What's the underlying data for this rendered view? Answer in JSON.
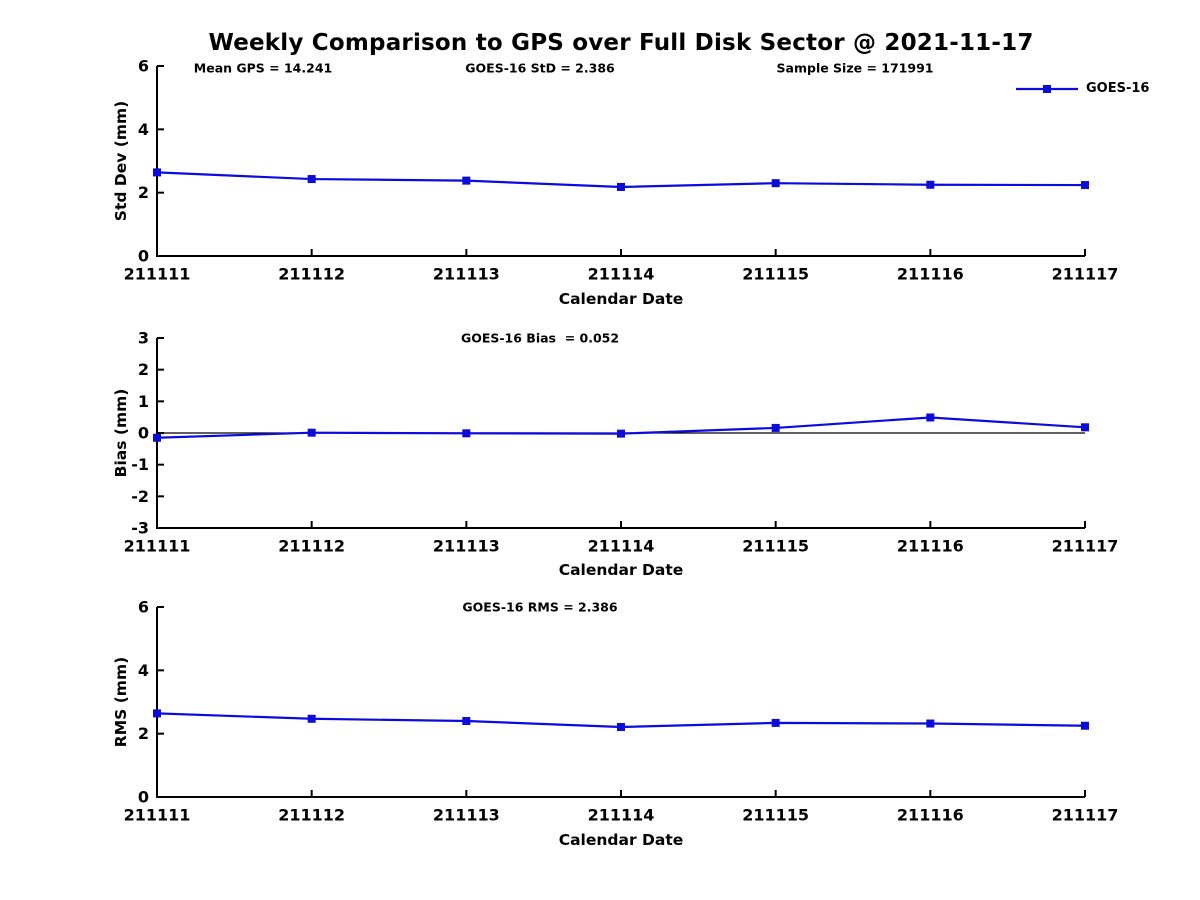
{
  "page_title": "Weekly Comparison to GPS over Full Disk Sector @ 2021-11-17",
  "legend": {
    "label": "GOES-16"
  },
  "colors": {
    "line": "#0b0bdf",
    "axis": "#000000",
    "text": "#000000",
    "background": "#ffffff"
  },
  "chart_data": [
    {
      "type": "line",
      "ylabel": "Std Dev (mm)",
      "xlabel": "Calendar Date",
      "categories": [
        "211111",
        "211112",
        "211113",
        "211114",
        "211115",
        "211116",
        "211117"
      ],
      "yticks": [
        0,
        2,
        4,
        6
      ],
      "ylim": [
        0,
        6
      ],
      "grid": false,
      "legend_position": "top-right-outside",
      "marker": "square",
      "series": [
        {
          "name": "GOES-16",
          "values": [
            2.64,
            2.43,
            2.38,
            2.18,
            2.3,
            2.25,
            2.24
          ]
        }
      ],
      "annotations": [
        "Mean GPS = 14.241",
        "GOES-16 StD = 2.386",
        "Sample Size = 171991"
      ]
    },
    {
      "type": "line",
      "ylabel": "Bias (mm)",
      "xlabel": "Calendar Date",
      "categories": [
        "211111",
        "211112",
        "211113",
        "211114",
        "211115",
        "211116",
        "211117"
      ],
      "yticks": [
        -3,
        -2,
        -1,
        0,
        1,
        2,
        3
      ],
      "ylim": [
        -3,
        3
      ],
      "grid": false,
      "zero_line": true,
      "marker": "square",
      "series": [
        {
          "name": "GOES-16",
          "values": [
            -0.15,
            0.01,
            -0.01,
            -0.02,
            0.16,
            0.49,
            0.18
          ]
        }
      ],
      "annotations": [
        "GOES-16 Bias  = 0.052"
      ]
    },
    {
      "type": "line",
      "ylabel": "RMS (mm)",
      "xlabel": "Calendar Date",
      "categories": [
        "211111",
        "211112",
        "211113",
        "211114",
        "211115",
        "211116",
        "211117"
      ],
      "yticks": [
        0,
        2,
        4,
        6
      ],
      "ylim": [
        0,
        6
      ],
      "grid": false,
      "marker": "square",
      "series": [
        {
          "name": "GOES-16",
          "values": [
            2.64,
            2.47,
            2.4,
            2.21,
            2.34,
            2.32,
            2.25
          ]
        }
      ],
      "annotations": [
        "GOES-16 RMS = 2.386"
      ]
    }
  ]
}
